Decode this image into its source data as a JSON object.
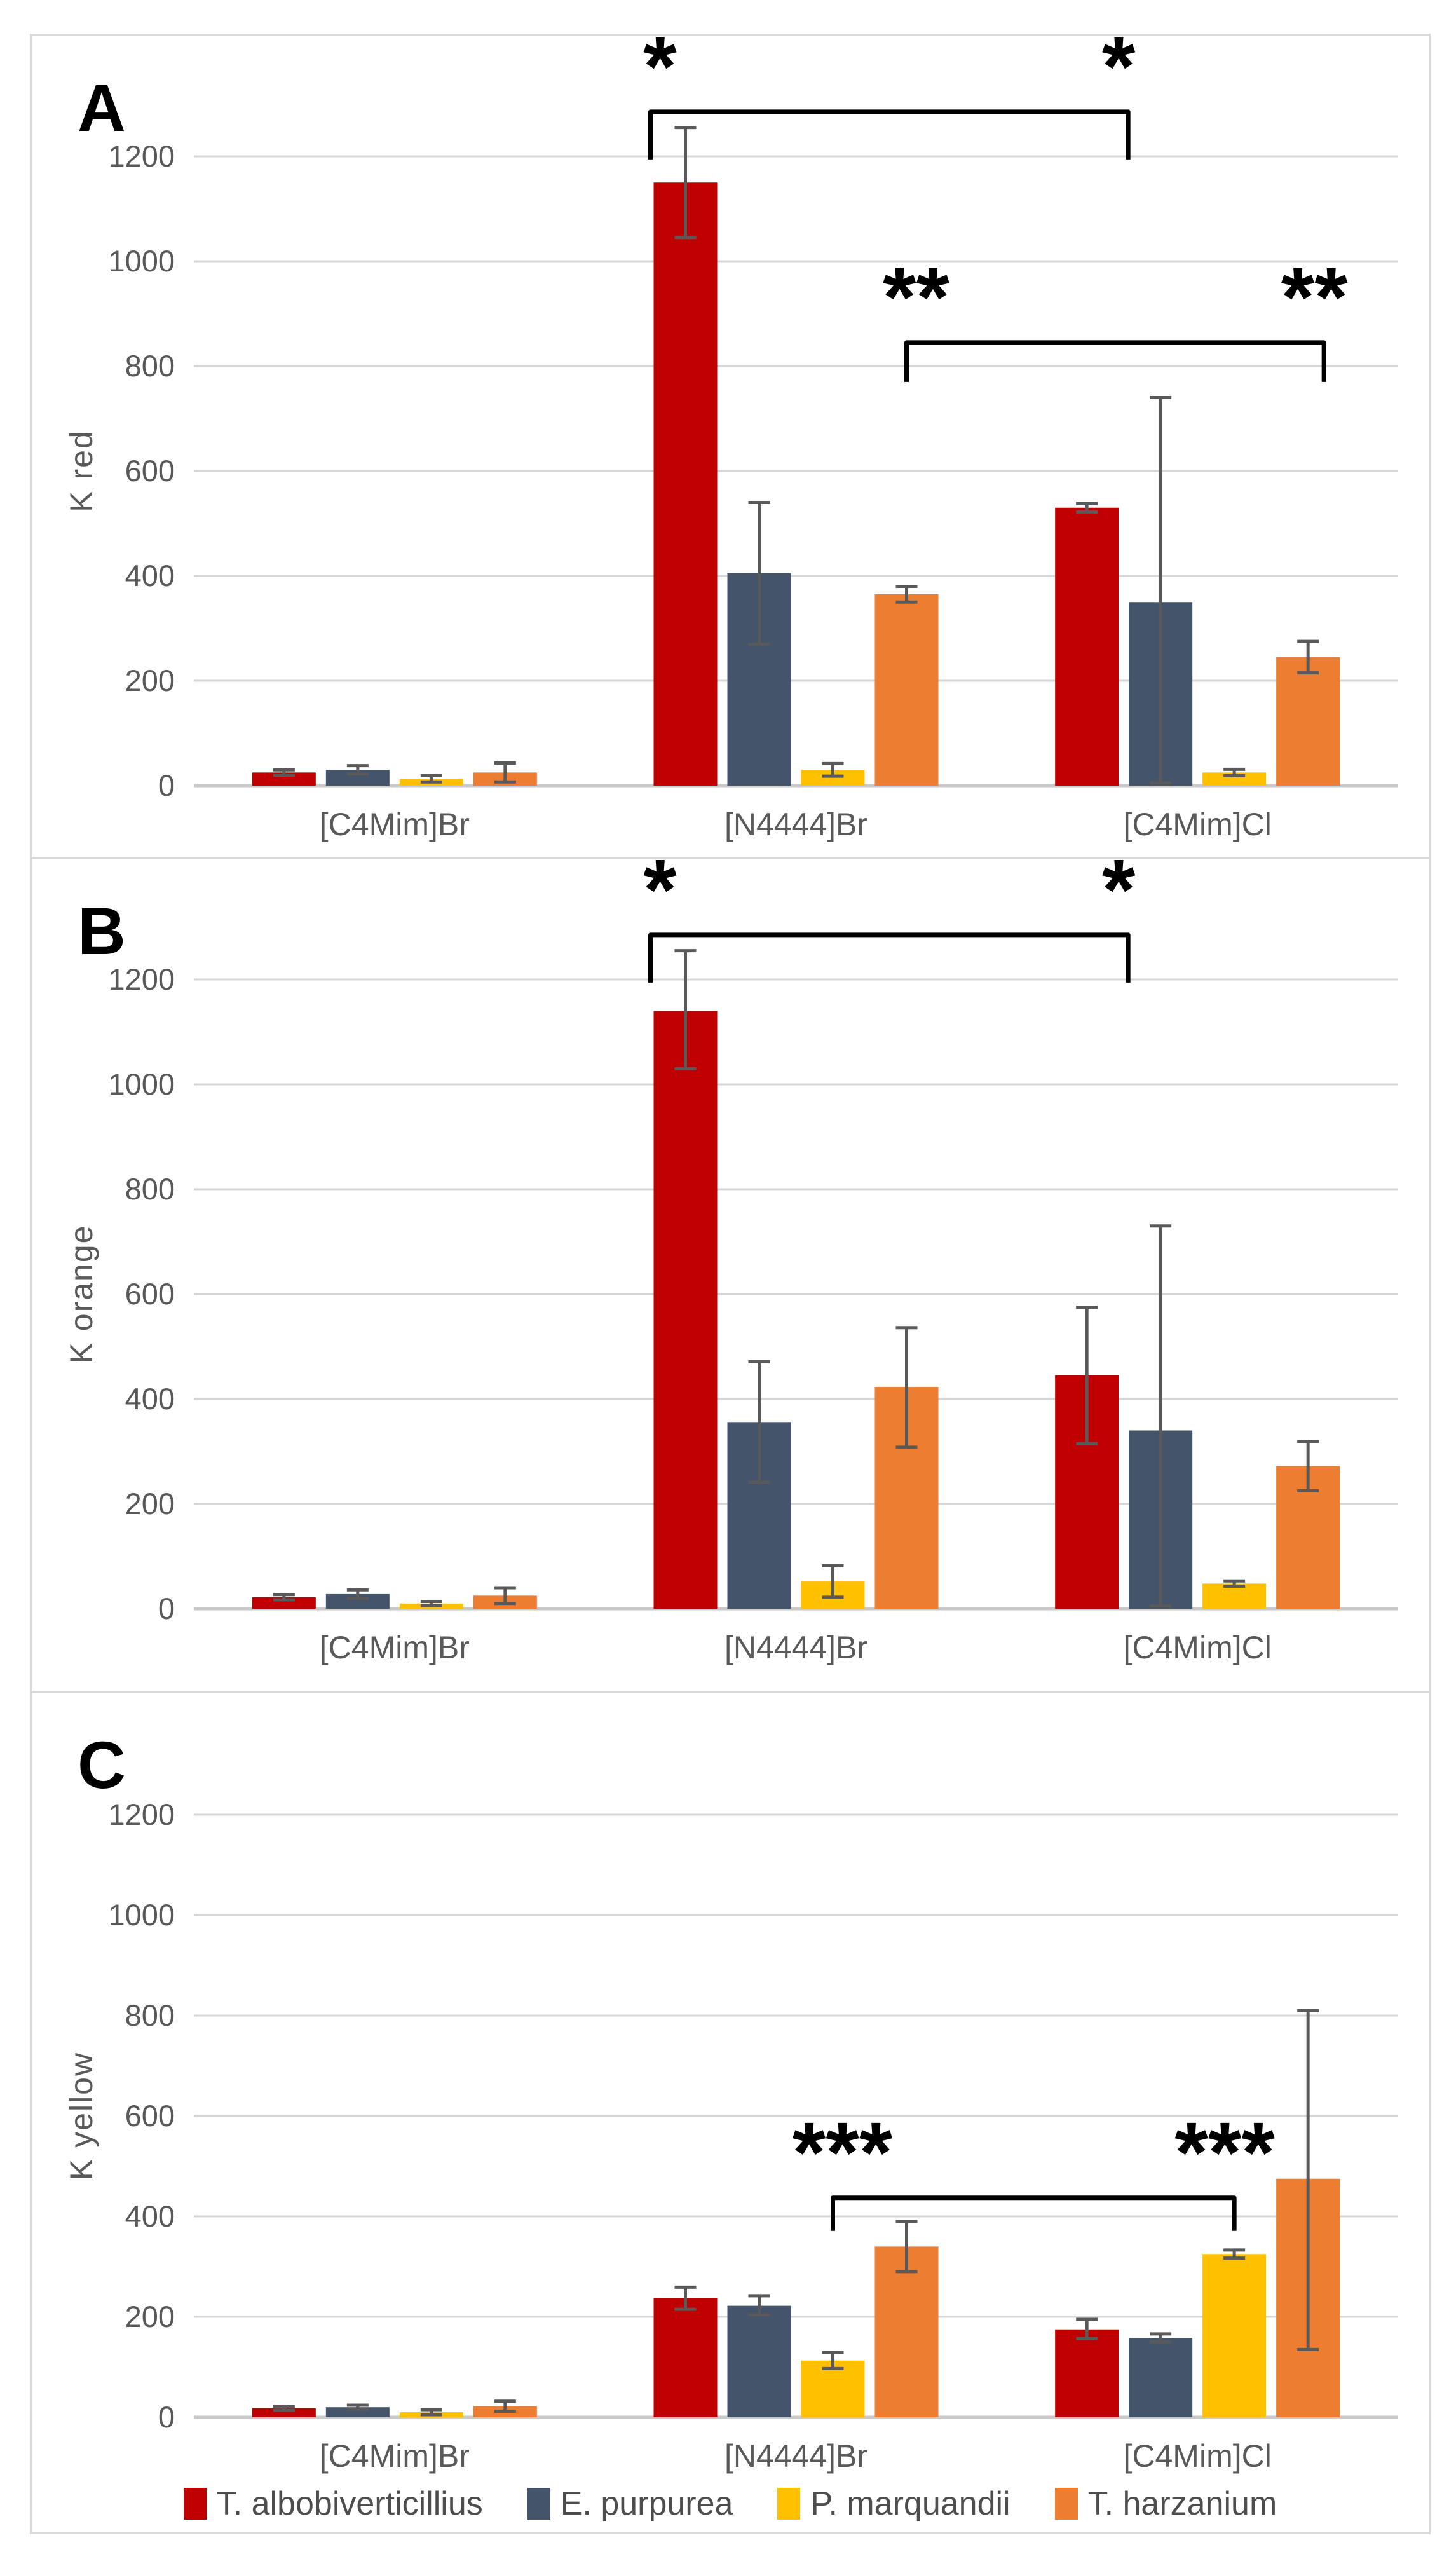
{
  "figure": {
    "description": "Three stacked bar chart panels comparing pigment production constants for three ionic liquids across four fungal species"
  },
  "legend": {
    "items": [
      {
        "label": "T. albobiverticillius",
        "color": "#C00000"
      },
      {
        "label": "E. purpurea",
        "color": "#44546A"
      },
      {
        "label": "P. marquandii",
        "color": "#FFC000"
      },
      {
        "label": "T. harzanium",
        "color": "#ED7D31"
      }
    ]
  },
  "chart_data": {
    "type": "bar",
    "grid": true,
    "legend_position": "bottom",
    "yticks": [
      0,
      200,
      400,
      600,
      800,
      1000,
      1200
    ],
    "ylim": [
      0,
      1300
    ],
    "categories": [
      "[C4Mim]Br",
      "[N4444]Br",
      "[C4Mim]Cl"
    ],
    "panels": [
      {
        "label": "A",
        "ylabel": "K red",
        "series": [
          {
            "name": "T. albobiverticillius",
            "color": "#C00000",
            "values": [
              25,
              1150,
              530
            ],
            "err_up": [
              5,
              105,
              8
            ],
            "err_dn": [
              5,
              105,
              8
            ]
          },
          {
            "name": "E. purpurea",
            "color": "#44546A",
            "values": [
              30,
              405,
              350
            ],
            "err_up": [
              8,
              135,
              390
            ],
            "err_dn": [
              8,
              135,
              345
            ]
          },
          {
            "name": "P. marquandii",
            "color": "#FFC000",
            "values": [
              13,
              30,
              25
            ],
            "err_up": [
              6,
              12,
              6
            ],
            "err_dn": [
              6,
              12,
              6
            ]
          },
          {
            "name": "T. harzanium",
            "color": "#ED7D31",
            "values": [
              25,
              365,
              245
            ],
            "err_up": [
              18,
              15,
              30
            ],
            "err_dn": [
              18,
              15,
              30
            ]
          }
        ],
        "brackets": [
          {
            "label": "*",
            "from_group": 1,
            "from_series": 0,
            "to_group": 2,
            "to_series": 0,
            "dx1": -55,
            "dx2": 65,
            "level": 1285,
            "drop": 75
          },
          {
            "label": "**",
            "from_group": 1,
            "from_series": 3,
            "to_group": 2,
            "to_series": 3,
            "dx1": 0,
            "dx2": 25,
            "level": 845,
            "drop": 62
          }
        ]
      },
      {
        "label": "B",
        "ylabel": "K orange",
        "series": [
          {
            "name": "T. albobiverticillius",
            "color": "#C00000",
            "values": [
              22,
              1140,
              445
            ],
            "err_up": [
              5,
              115,
              130
            ],
            "err_dn": [
              5,
              110,
              130
            ]
          },
          {
            "name": "E. purpurea",
            "color": "#44546A",
            "values": [
              28,
              356,
              340
            ],
            "err_up": [
              8,
              115,
              390
            ],
            "err_dn": [
              8,
              115,
              335
            ]
          },
          {
            "name": "P. marquandii",
            "color": "#FFC000",
            "values": [
              10,
              52,
              48
            ],
            "err_up": [
              4,
              30,
              5
            ],
            "err_dn": [
              4,
              30,
              5
            ]
          },
          {
            "name": "T. harzanium",
            "color": "#ED7D31",
            "values": [
              25,
              423,
              272
            ],
            "err_up": [
              15,
              113,
              47
            ],
            "err_dn": [
              15,
              115,
              47
            ]
          }
        ],
        "brackets": [
          {
            "label": "*",
            "from_group": 1,
            "from_series": 0,
            "to_group": 2,
            "to_series": 0,
            "dx1": -55,
            "dx2": 65,
            "level": 1285,
            "drop": 75
          }
        ]
      },
      {
        "label": "C",
        "ylabel": "K yellow",
        "series": [
          {
            "name": "T. albobiverticillius",
            "color": "#C00000",
            "values": [
              18,
              237,
              175
            ],
            "err_up": [
              4,
              22,
              20
            ],
            "err_dn": [
              4,
              22,
              18
            ]
          },
          {
            "name": "E. purpurea",
            "color": "#44546A",
            "values": [
              20,
              222,
              158
            ],
            "err_up": [
              4,
              20,
              8
            ],
            "err_dn": [
              4,
              18,
              8
            ]
          },
          {
            "name": "P. marquandii",
            "color": "#FFC000",
            "values": [
              10,
              113,
              325
            ],
            "err_up": [
              5,
              16,
              8
            ],
            "err_dn": [
              5,
              16,
              8
            ]
          },
          {
            "name": "T. harzanium",
            "color": "#ED7D31",
            "values": [
              22,
              340,
              475
            ],
            "err_up": [
              10,
              50,
              335
            ],
            "err_dn": [
              10,
              50,
              340
            ]
          }
        ],
        "brackets": [
          {
            "label": "***",
            "from_group": 1,
            "from_series": 2,
            "to_group": 2,
            "to_series": 2,
            "dx1": 0,
            "dx2": 0,
            "level": 437,
            "drop": 52
          }
        ]
      }
    ]
  }
}
